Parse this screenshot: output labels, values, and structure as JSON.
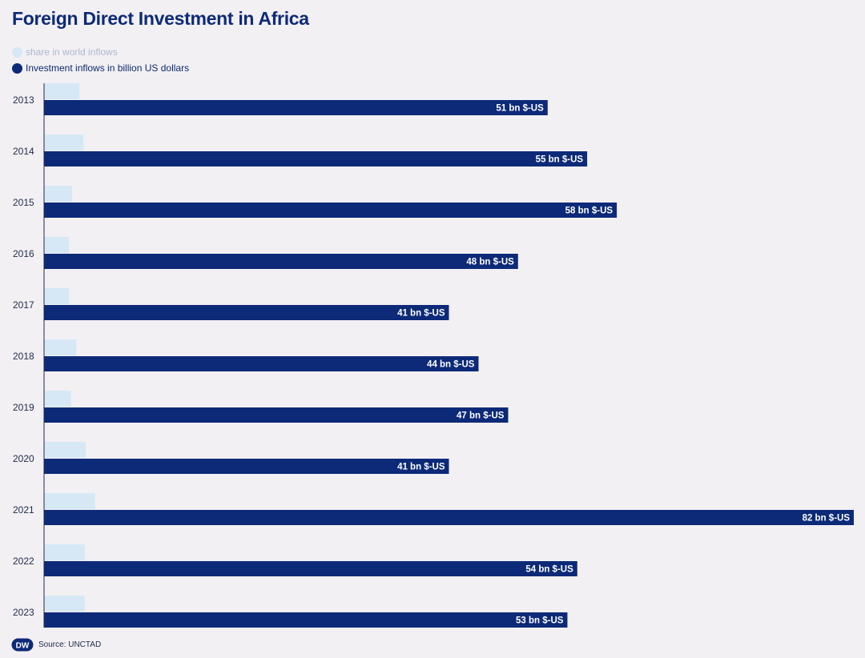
{
  "title": "Foreign Direct Investment in Africa",
  "legend": [
    {
      "label": "share in world inflows",
      "color": "#d6e8f6",
      "text_color": "#aab8cf"
    },
    {
      "label": "Investment inflows in billion US dollars",
      "color": "#0d2a78",
      "text_color": "#0b2a6f"
    }
  ],
  "footer": {
    "logo_text": "DW",
    "source": "Source: UNCTAD"
  },
  "chart_data": {
    "type": "bar",
    "orientation": "horizontal",
    "title": "Foreign Direct Investment in Africa",
    "categories": [
      "2013",
      "2014",
      "2015",
      "2016",
      "2017",
      "2018",
      "2019",
      "2020",
      "2021",
      "2022",
      "2023"
    ],
    "series": [
      {
        "name": "share in world inflows",
        "values": [
          3.4,
          3.8,
          2.7,
          2.4,
          2.4,
          3.1,
          2.6,
          4.0,
          4.9,
          3.9,
          3.9
        ],
        "color": "#d6e8f6"
      },
      {
        "name": "Investment inflows in billion US dollars",
        "values": [
          51,
          55,
          58,
          48,
          41,
          44,
          47,
          41,
          82,
          54,
          53
        ],
        "data_labels": [
          "51 bn $-US",
          "55 bn $-US",
          "58 bn $-US",
          "48 bn $-US",
          "41 bn $-US",
          "44 bn $-US",
          "47 bn $-US",
          "41 bn $-US",
          "82 bn $-US",
          "54 bn $-US",
          "53 bn $-US"
        ],
        "color": "#0d2a78"
      }
    ],
    "xlim": [
      0,
      82
    ],
    "grid": false,
    "legend_position": "top-left"
  }
}
